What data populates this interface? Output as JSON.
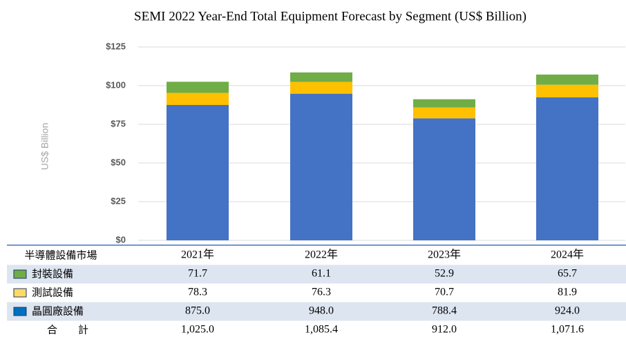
{
  "chart_data": {
    "type": "stacked_bar",
    "title": "SEMI 2022 Year-End Total Equipment Forecast by Segment (US$ Billion)",
    "y_label": "US$ Billion",
    "categories": [
      "2021年",
      "2022年",
      "2023年",
      "2024年"
    ],
    "series": [
      {
        "name": "封裝設備",
        "color": "#70ad47",
        "values": [
          7.17,
          6.11,
          5.29,
          6.57
        ]
      },
      {
        "name": "測試設備",
        "color": "#ffc000",
        "values": [
          7.83,
          7.63,
          7.07,
          8.19
        ]
      },
      {
        "name": "晶圓廠設備",
        "color": "#4472c4",
        "values": [
          87.5,
          94.8,
          78.84,
          92.4
        ]
      }
    ],
    "ylim": [
      0,
      125
    ],
    "yticks": [
      {
        "value": 0,
        "label": "$0"
      },
      {
        "value": 25,
        "label": "$25"
      },
      {
        "value": 50,
        "label": "$50"
      },
      {
        "value": 75,
        "label": "$75"
      },
      {
        "value": 100,
        "label": "$100"
      },
      {
        "value": 125,
        "label": "$125"
      }
    ],
    "grid": true
  },
  "table": {
    "header": "半導體設備市場",
    "rows": [
      [
        "71.7",
        "61.1",
        "52.9",
        "65.7"
      ],
      [
        "78.3",
        "76.3",
        "70.7",
        "81.9"
      ],
      [
        "875.0",
        "948.0",
        "788.4",
        "924.0"
      ]
    ],
    "swatch_colors": [
      "#70ad47",
      "#ffd966",
      "#0070c0"
    ],
    "total_label": "合　　計",
    "total": [
      "1,025.0",
      "1,085.4",
      "912.0",
      "1,071.6"
    ]
  }
}
